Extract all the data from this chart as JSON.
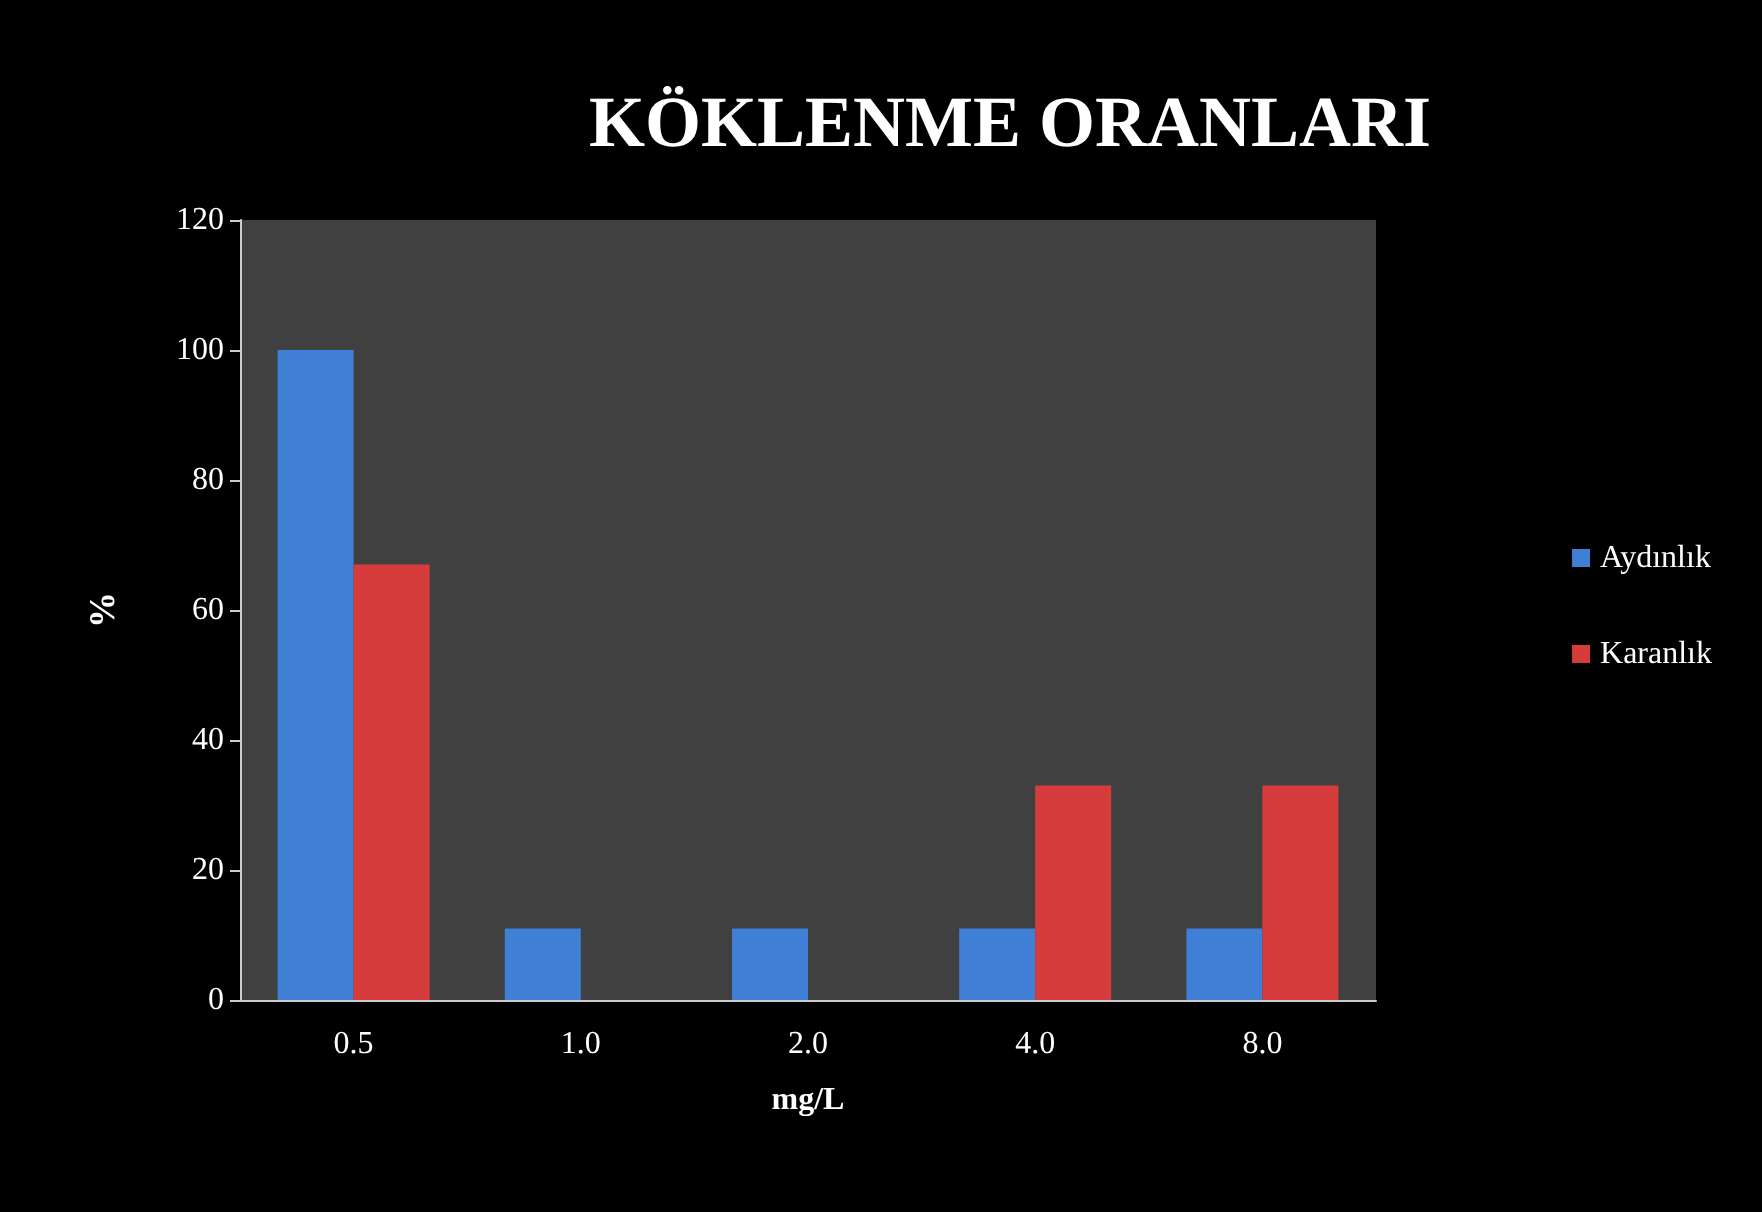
{
  "chart_data": {
    "type": "bar",
    "title": "KÖKLENME ORANLARI",
    "xlabel": "mg/L",
    "ylabel": "%",
    "categories": [
      "0.5",
      "1.0",
      "2.0",
      "4.0",
      "8.0"
    ],
    "series": [
      {
        "name": "Aydınlık",
        "color": "#3f7fd6",
        "values": [
          100,
          11,
          11,
          11,
          11
        ]
      },
      {
        "name": "Karanlık",
        "color": "#d63c3c",
        "values": [
          67,
          0,
          0,
          33,
          33
        ]
      }
    ],
    "ylim": [
      0,
      120
    ],
    "yticks": [
      0,
      20,
      40,
      60,
      80,
      100,
      120
    ],
    "grid": false,
    "legend": "right"
  }
}
